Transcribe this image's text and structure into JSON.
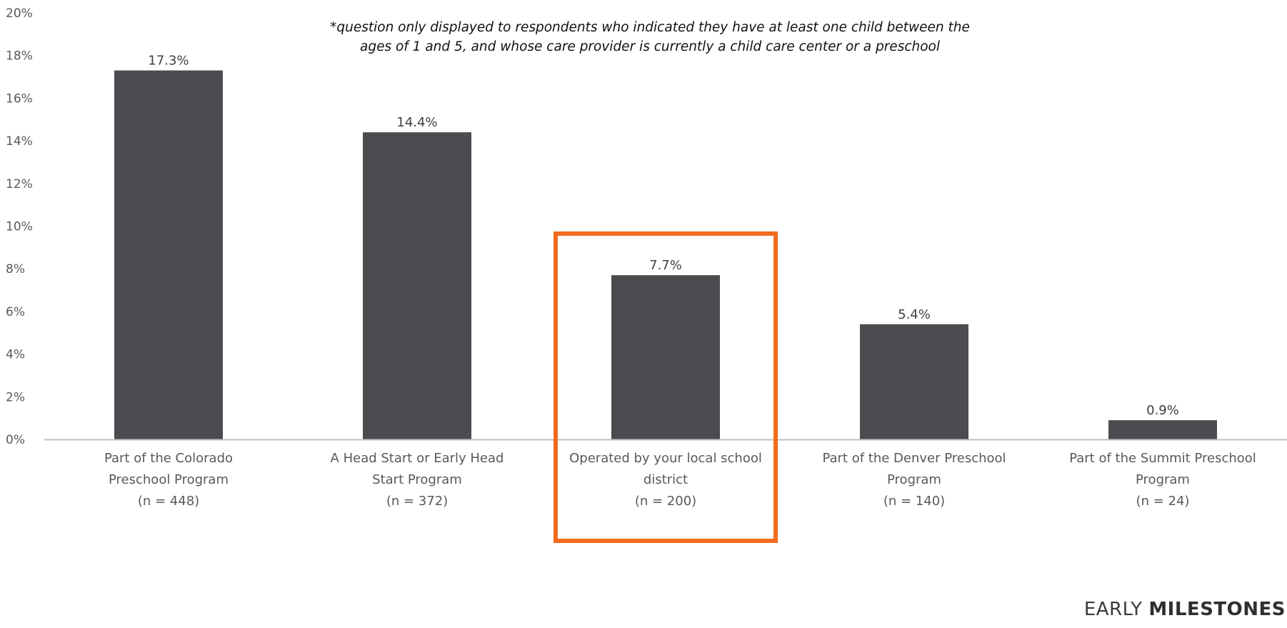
{
  "chart_data": {
    "type": "bar",
    "categories": [
      [
        "Part of the Colorado",
        "Preschool Program",
        "(n = 448)"
      ],
      [
        "A Head Start or Early Head",
        "Start Program",
        "(n = 372)"
      ],
      [
        "Operated by your local school",
        "district",
        "(n = 200)"
      ],
      [
        "Part of the Denver Preschool",
        "Program",
        "(n = 140)"
      ],
      [
        "Part of the Summit Preschool",
        "Program",
        "(n = 24)"
      ]
    ],
    "values": [
      17.3,
      14.4,
      7.7,
      5.4,
      0.9
    ],
    "data_labels": [
      "17.3%",
      "14.4%",
      "7.7%",
      "5.4%",
      "0.9%"
    ],
    "y_ticks": [
      0,
      2,
      4,
      6,
      8,
      10,
      12,
      14,
      16,
      18,
      20
    ],
    "y_tick_labels": [
      "0%",
      "2%",
      "4%",
      "6%",
      "8%",
      "10%",
      "12%",
      "14%",
      "16%",
      "18%",
      "20%"
    ],
    "ylim": [
      0,
      20
    ],
    "highlight_index": 2,
    "grid": false,
    "legend": "none",
    "colors": {
      "bar": "#4a4c4f",
      "axis": "#bfbfbf",
      "tick_text": "#595959",
      "highlight": "#f26b1d"
    }
  },
  "note": {
    "line1": "*question only displayed to respondents who indicated they have at least one child between the",
    "line2": "ages of 1 and 5, and whose care provider is currently a child care center or a preschool"
  },
  "brand": {
    "light": "EARLY",
    "bold": "MILESTONES"
  }
}
